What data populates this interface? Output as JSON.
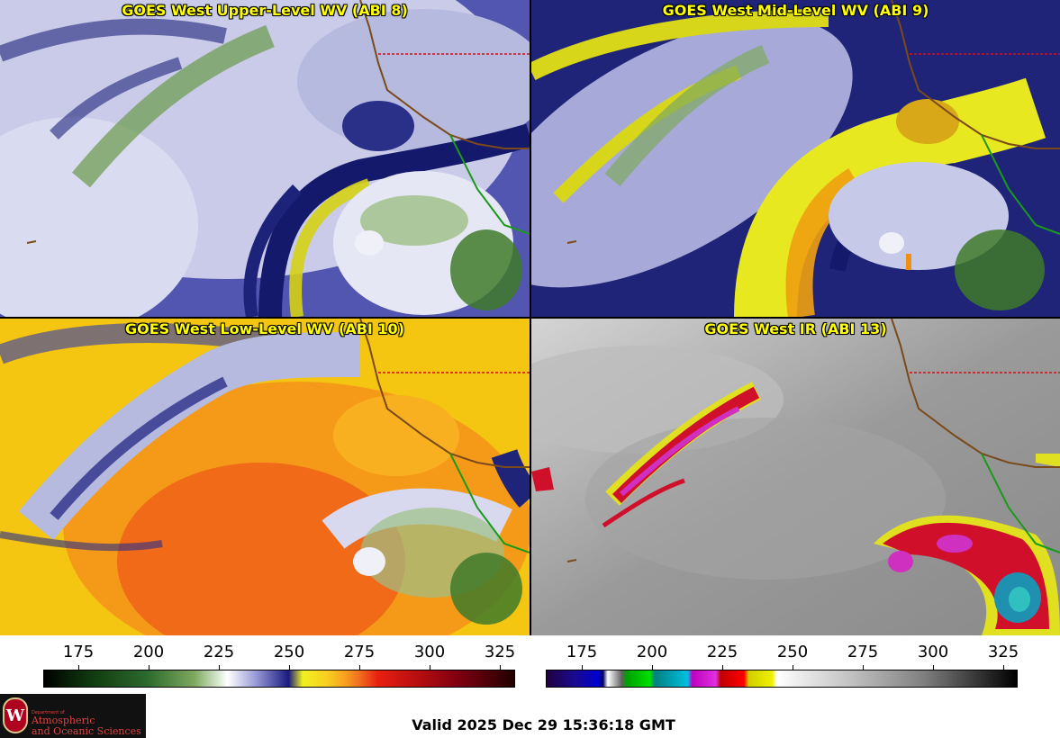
{
  "panels": {
    "upper": {
      "title": "GOES West Upper-Level WV (ABI 8)"
    },
    "mid": {
      "title": "GOES West Mid-Level WV (ABI 9)"
    },
    "low": {
      "title": "GOES West Low-Level WV (ABI 10)"
    },
    "ir": {
      "title": "GOES West IR (ABI 13)"
    }
  },
  "colorbars": {
    "wv": {
      "tick_labels": [
        "175",
        "200",
        "225",
        "250",
        "275",
        "300",
        "325"
      ]
    },
    "ir": {
      "tick_labels": [
        "175",
        "200",
        "225",
        "250",
        "275",
        "300",
        "325"
      ]
    }
  },
  "logo": {
    "department": "Department of",
    "line1": "Atmospheric",
    "line2": "and Oceanic Sciences",
    "seal_letter": "W"
  },
  "valid_time": "Valid 2025 Dec 29 15:36:18 GMT",
  "colors": {
    "title_text": "#ffff00",
    "state_borders": "#d0101a",
    "coastline": "#7a4a1a",
    "mexico_coast": "#1a9a1a"
  }
}
